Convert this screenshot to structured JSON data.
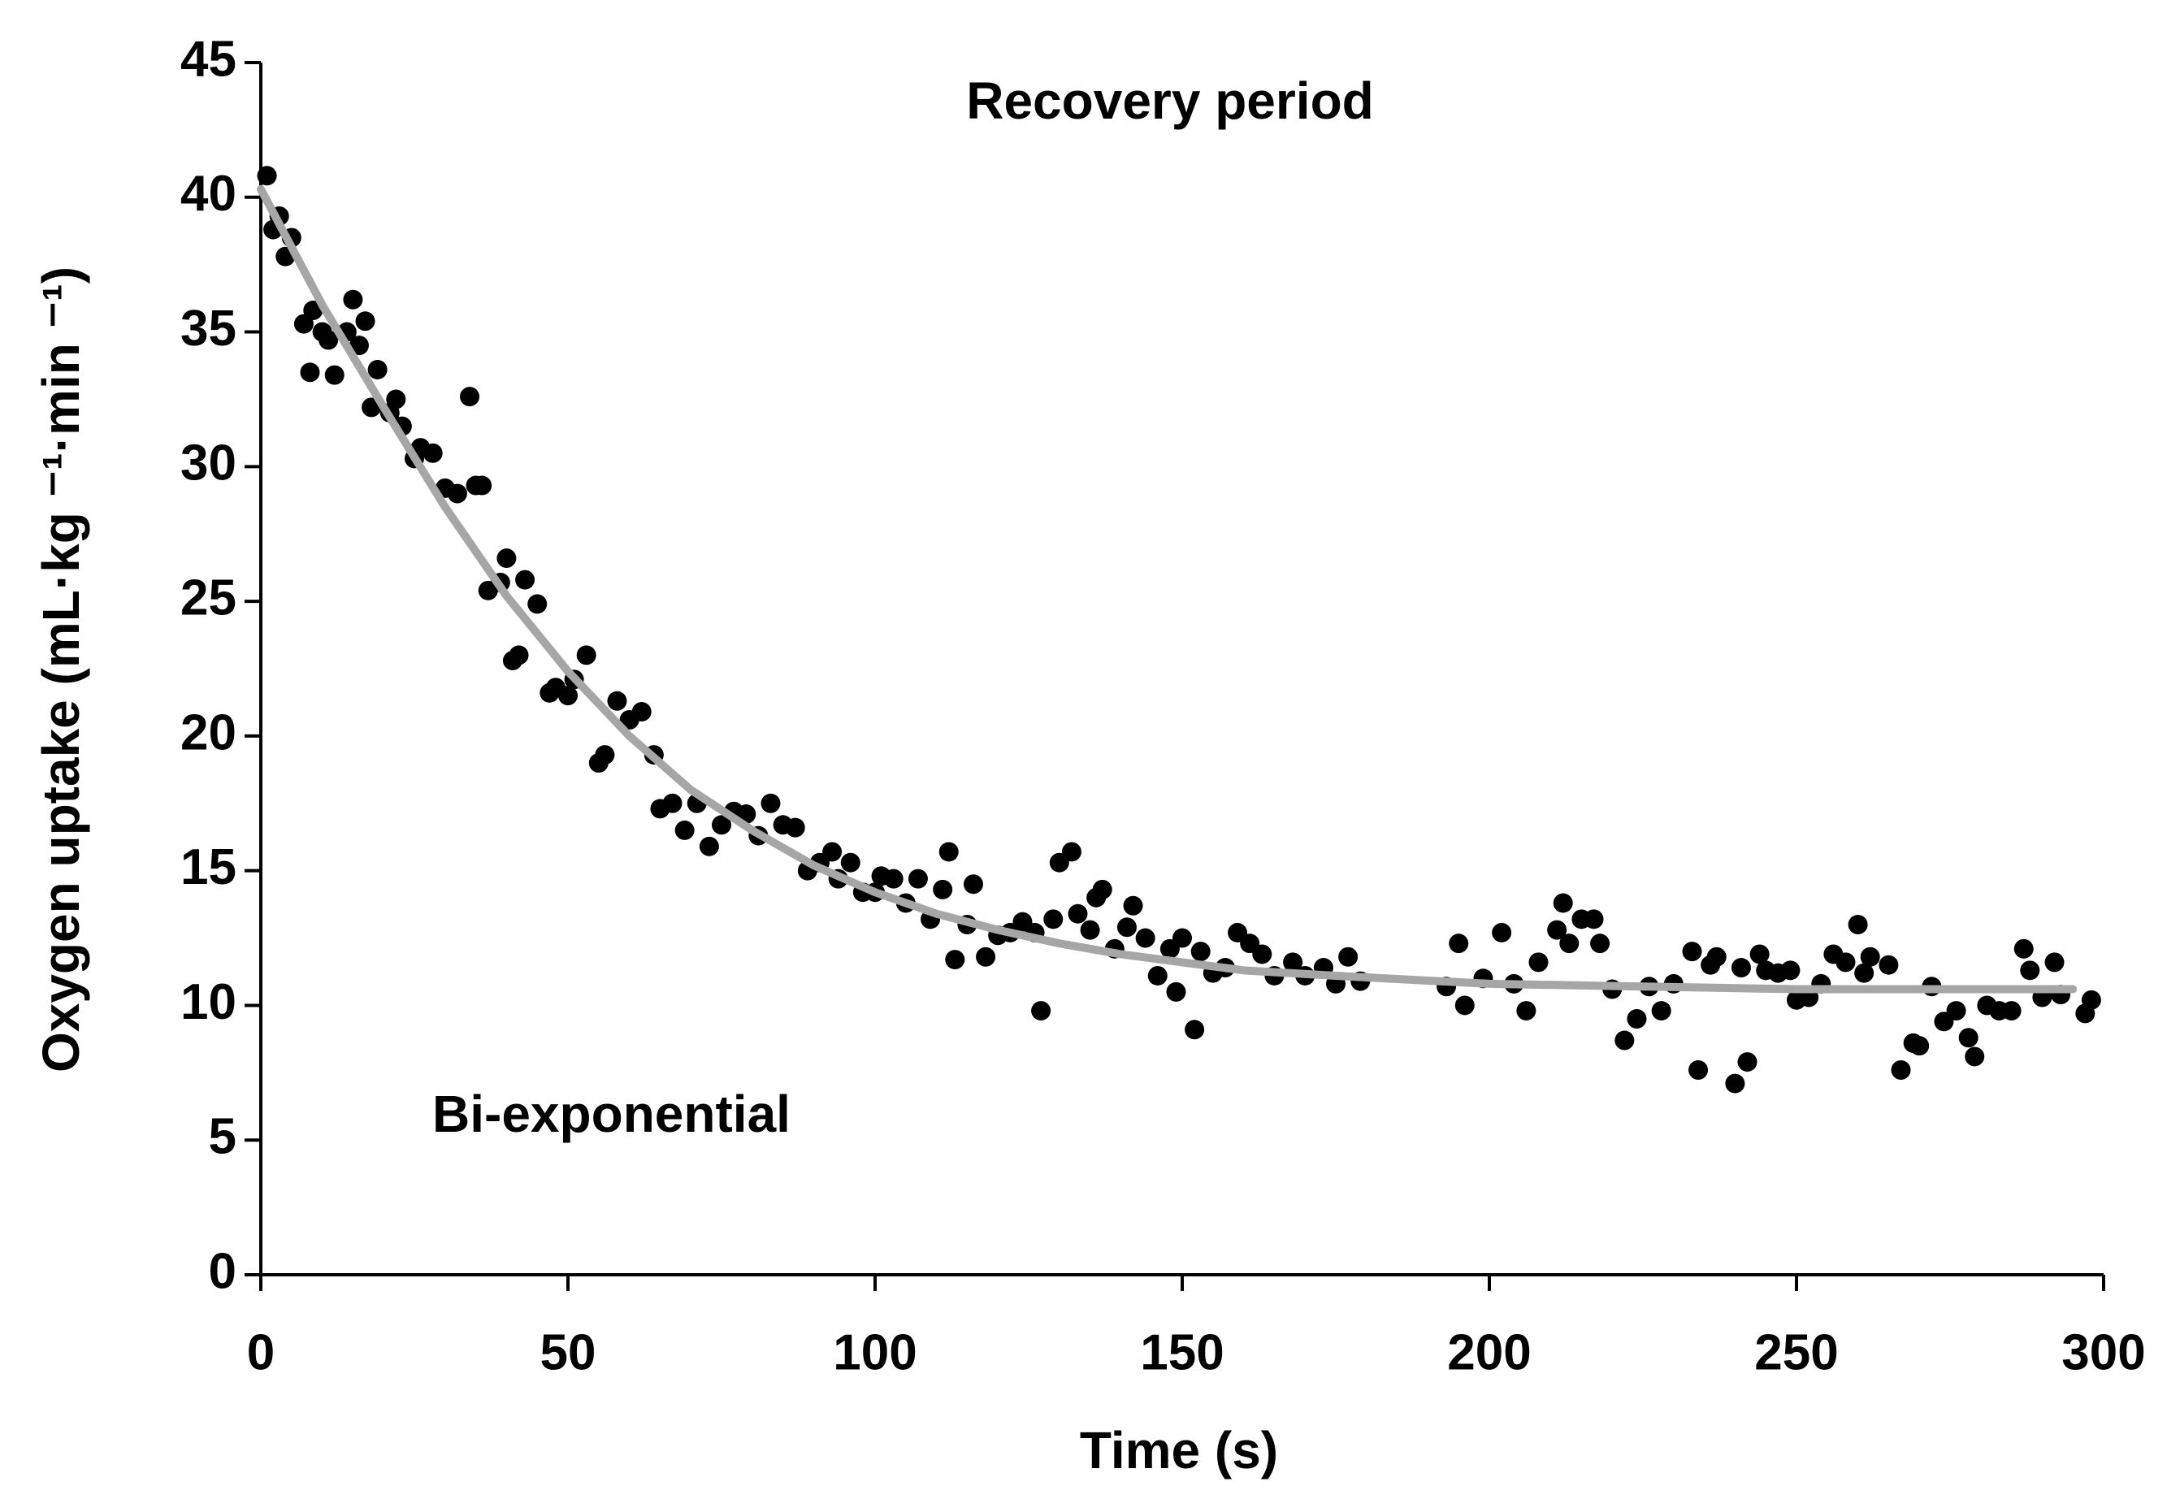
{
  "chart_data": {
    "type": "scatter",
    "annotations": [
      "Recovery period",
      "Bi-exponential"
    ],
    "x_label": "Time (s)",
    "y_label": "Oxygen uptake (mL·kg ⁻¹·min ⁻¹)",
    "xlim": [
      0,
      300
    ],
    "xticks": [
      0,
      50,
      100,
      150,
      200,
      250,
      300
    ],
    "ylim": [
      0,
      45
    ],
    "yticks": [
      0,
      5,
      10,
      15,
      20,
      25,
      30,
      35,
      40,
      45
    ],
    "series": [
      {
        "type": "scatter",
        "color": "#000000",
        "x": [
          1,
          2,
          3,
          4,
          5,
          7,
          8,
          8.5,
          10,
          11,
          12,
          14,
          15,
          16,
          17,
          18,
          19,
          21,
          22,
          23,
          25,
          26,
          28,
          30,
          32,
          34,
          35,
          36,
          37,
          39,
          40,
          41,
          42,
          43,
          45,
          47,
          48,
          50,
          51,
          53,
          55,
          56,
          58,
          60,
          62,
          64,
          65,
          67,
          69,
          71,
          73,
          75,
          77,
          79,
          81,
          83,
          85,
          87,
          89,
          91,
          93,
          94,
          96,
          98,
          100,
          101,
          103,
          105,
          107,
          109,
          111,
          112,
          113,
          115,
          116,
          118,
          120,
          122,
          124,
          126,
          127,
          129,
          130,
          132,
          133,
          135,
          136,
          137,
          139,
          141,
          142,
          144,
          146,
          148,
          149,
          150,
          152,
          153,
          155,
          157,
          159,
          161,
          163,
          165,
          168,
          170,
          173,
          175,
          177,
          179,
          193,
          195,
          196,
          199,
          202,
          204,
          206,
          208,
          211,
          212,
          213,
          215,
          217,
          218,
          220,
          222,
          224,
          226,
          228,
          230,
          233,
          234,
          236,
          237,
          240,
          241,
          242,
          244,
          245,
          247,
          249,
          250,
          252,
          254,
          256,
          258,
          260,
          261,
          262,
          265,
          267,
          269,
          270,
          272,
          274,
          276,
          278,
          279,
          281,
          283,
          285,
          287,
          288,
          290,
          292,
          293,
          297,
          298
        ],
        "values": [
          40.8,
          38.8,
          39.3,
          37.8,
          38.5,
          35.3,
          33.5,
          35.8,
          35,
          34.7,
          33.4,
          35,
          36.2,
          34.5,
          35.4,
          32.2,
          33.6,
          32,
          32.5,
          31.5,
          30.3,
          30.7,
          30.5,
          29.2,
          29,
          32.6,
          29.3,
          29.3,
          25.4,
          25.7,
          26.6,
          22.8,
          23,
          25.8,
          24.9,
          21.6,
          21.8,
          21.5,
          22.1,
          23,
          19,
          19.3,
          21.3,
          20.6,
          20.9,
          19.3,
          17.3,
          17.5,
          16.5,
          17.5,
          15.9,
          16.7,
          17.2,
          17.1,
          16.3,
          17.5,
          16.7,
          16.6,
          15,
          15.3,
          15.7,
          14.7,
          15.3,
          14.2,
          14.2,
          14.8,
          14.7,
          13.8,
          14.7,
          13.2,
          14.3,
          15.7,
          11.7,
          13,
          14.5,
          11.8,
          12.6,
          12.7,
          13.1,
          12.7,
          9.8,
          13.2,
          15.3,
          15.7,
          13.4,
          12.8,
          14,
          14.3,
          12.1,
          12.9,
          13.7,
          12.5,
          11.1,
          12.1,
          10.5,
          12.5,
          9.1,
          12,
          11.2,
          11.4,
          12.7,
          12.3,
          11.9,
          11.1,
          11.6,
          11.1,
          11.4,
          10.8,
          11.8,
          10.9,
          10.7,
          12.3,
          10,
          11,
          12.7,
          10.8,
          9.8,
          11.6,
          12.8,
          13.8,
          12.3,
          13.2,
          13.2,
          12.3,
          10.6,
          8.7,
          9.5,
          10.7,
          9.8,
          10.8,
          12,
          7.6,
          11.5,
          11.8,
          7.1,
          11.4,
          7.9,
          11.9,
          11.3,
          11.2,
          11.3,
          10.2,
          10.3,
          10.8,
          11.9,
          11.6,
          13,
          11.2,
          11.8,
          11.5,
          7.6,
          8.6,
          8.5,
          10.7,
          9.4,
          9.8,
          8.8,
          8.1,
          10,
          9.8,
          9.8,
          12.1,
          11.3,
          10.3,
          11.6,
          10.4,
          9.7,
          10.2
        ]
      },
      {
        "type": "line",
        "color": "#a6a6a6",
        "x": [
          0,
          10,
          20,
          30,
          40,
          50,
          60,
          70,
          80,
          90,
          100,
          110,
          120,
          130,
          140,
          150,
          160,
          175,
          200,
          225,
          250,
          275,
          295
        ],
        "values": [
          40.3,
          36,
          32.2,
          28.5,
          25.2,
          22.4,
          20,
          18,
          16.5,
          15.2,
          14.2,
          13.4,
          12.8,
          12.3,
          11.9,
          11.6,
          11.3,
          11.1,
          10.8,
          10.7,
          10.6,
          10.6,
          10.6
        ]
      }
    ]
  }
}
